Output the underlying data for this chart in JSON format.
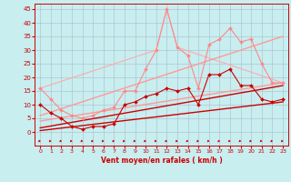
{
  "xlabel": "Vent moyen/en rafales ( km/h )",
  "xlim": [
    -0.5,
    23.5
  ],
  "ylim": [
    -5,
    47
  ],
  "yticks": [
    0,
    5,
    10,
    15,
    20,
    25,
    30,
    35,
    40,
    45
  ],
  "xticks": [
    0,
    1,
    2,
    3,
    4,
    5,
    6,
    7,
    8,
    9,
    10,
    11,
    12,
    13,
    14,
    15,
    16,
    17,
    18,
    19,
    20,
    21,
    22,
    23
  ],
  "background_color": "#c8eef0",
  "grid_color": "#aabbcc",
  "lines": [
    {
      "x": [
        0,
        1,
        2,
        3,
        4,
        5,
        6,
        7,
        8,
        9,
        10,
        11,
        12,
        13,
        14,
        15,
        16,
        17,
        18,
        19,
        20,
        21,
        22,
        23
      ],
      "y": [
        10,
        7,
        5,
        2,
        1,
        2,
        2,
        3,
        10,
        11,
        13,
        14,
        16,
        15,
        16,
        10,
        21,
        21,
        23,
        17,
        17,
        12,
        11,
        12
      ],
      "color": "#cc0000",
      "lw": 0.8,
      "marker": "D",
      "markersize": 2.0,
      "zorder": 5
    },
    {
      "x": [
        0,
        1,
        2,
        3,
        4,
        5,
        6,
        7,
        8,
        9,
        10,
        11,
        12,
        13,
        14,
        15,
        16,
        17,
        18,
        19,
        20,
        21,
        22,
        23
      ],
      "y": [
        16,
        12,
        8,
        6,
        5,
        6,
        8,
        9,
        15,
        15,
        23,
        30,
        45,
        31,
        28,
        16,
        32,
        34,
        38,
        33,
        34,
        25,
        18,
        18
      ],
      "color": "#ff8888",
      "lw": 0.8,
      "marker": "D",
      "markersize": 2.0,
      "zorder": 4
    },
    {
      "x": [
        0,
        23
      ],
      "y": [
        0.5,
        11
      ],
      "color": "#cc0000",
      "lw": 1.0,
      "marker": null,
      "markersize": 0,
      "zorder": 3
    },
    {
      "x": [
        0,
        23
      ],
      "y": [
        1.5,
        17
      ],
      "color": "#cc0000",
      "lw": 1.0,
      "marker": null,
      "markersize": 0,
      "zorder": 3
    },
    {
      "x": [
        0,
        23
      ],
      "y": [
        4,
        18
      ],
      "color": "#ff9999",
      "lw": 1.0,
      "marker": null,
      "markersize": 0,
      "zorder": 3
    },
    {
      "x": [
        0,
        23
      ],
      "y": [
        6,
        35
      ],
      "color": "#ff9999",
      "lw": 1.0,
      "marker": null,
      "markersize": 0,
      "zorder": 3
    },
    {
      "x": [
        0,
        11,
        12,
        13,
        23
      ],
      "y": [
        16,
        30,
        45,
        31,
        18
      ],
      "color": "#ffaaaa",
      "lw": 0.8,
      "marker": null,
      "markersize": 0,
      "zorder": 2
    }
  ],
  "wind_arrows": [
    {
      "x": 0
    },
    {
      "x": 1
    },
    {
      "x": 2
    },
    {
      "x": 3
    },
    {
      "x": 4
    },
    {
      "x": 5
    },
    {
      "x": 6
    },
    {
      "x": 7
    },
    {
      "x": 8
    },
    {
      "x": 9
    },
    {
      "x": 10
    },
    {
      "x": 11
    },
    {
      "x": 12
    },
    {
      "x": 13
    },
    {
      "x": 14
    },
    {
      "x": 15
    },
    {
      "x": 16
    },
    {
      "x": 17
    },
    {
      "x": 18
    },
    {
      "x": 19
    },
    {
      "x": 20
    },
    {
      "x": 21
    },
    {
      "x": 22
    },
    {
      "x": 23
    }
  ]
}
